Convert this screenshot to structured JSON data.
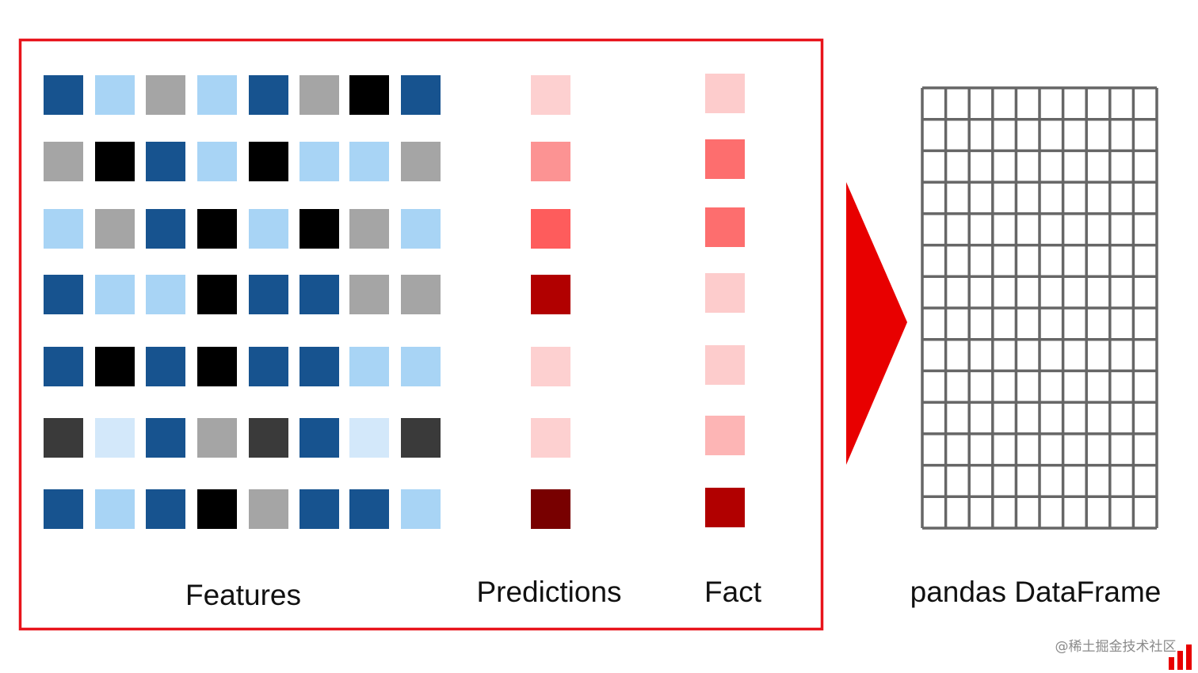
{
  "labels": {
    "features": "Features",
    "predictions": "Predictions",
    "fact": "Fact",
    "dataframe": "pandas DataFrame"
  },
  "watermark": "@稀土掘金技术社区"
}
